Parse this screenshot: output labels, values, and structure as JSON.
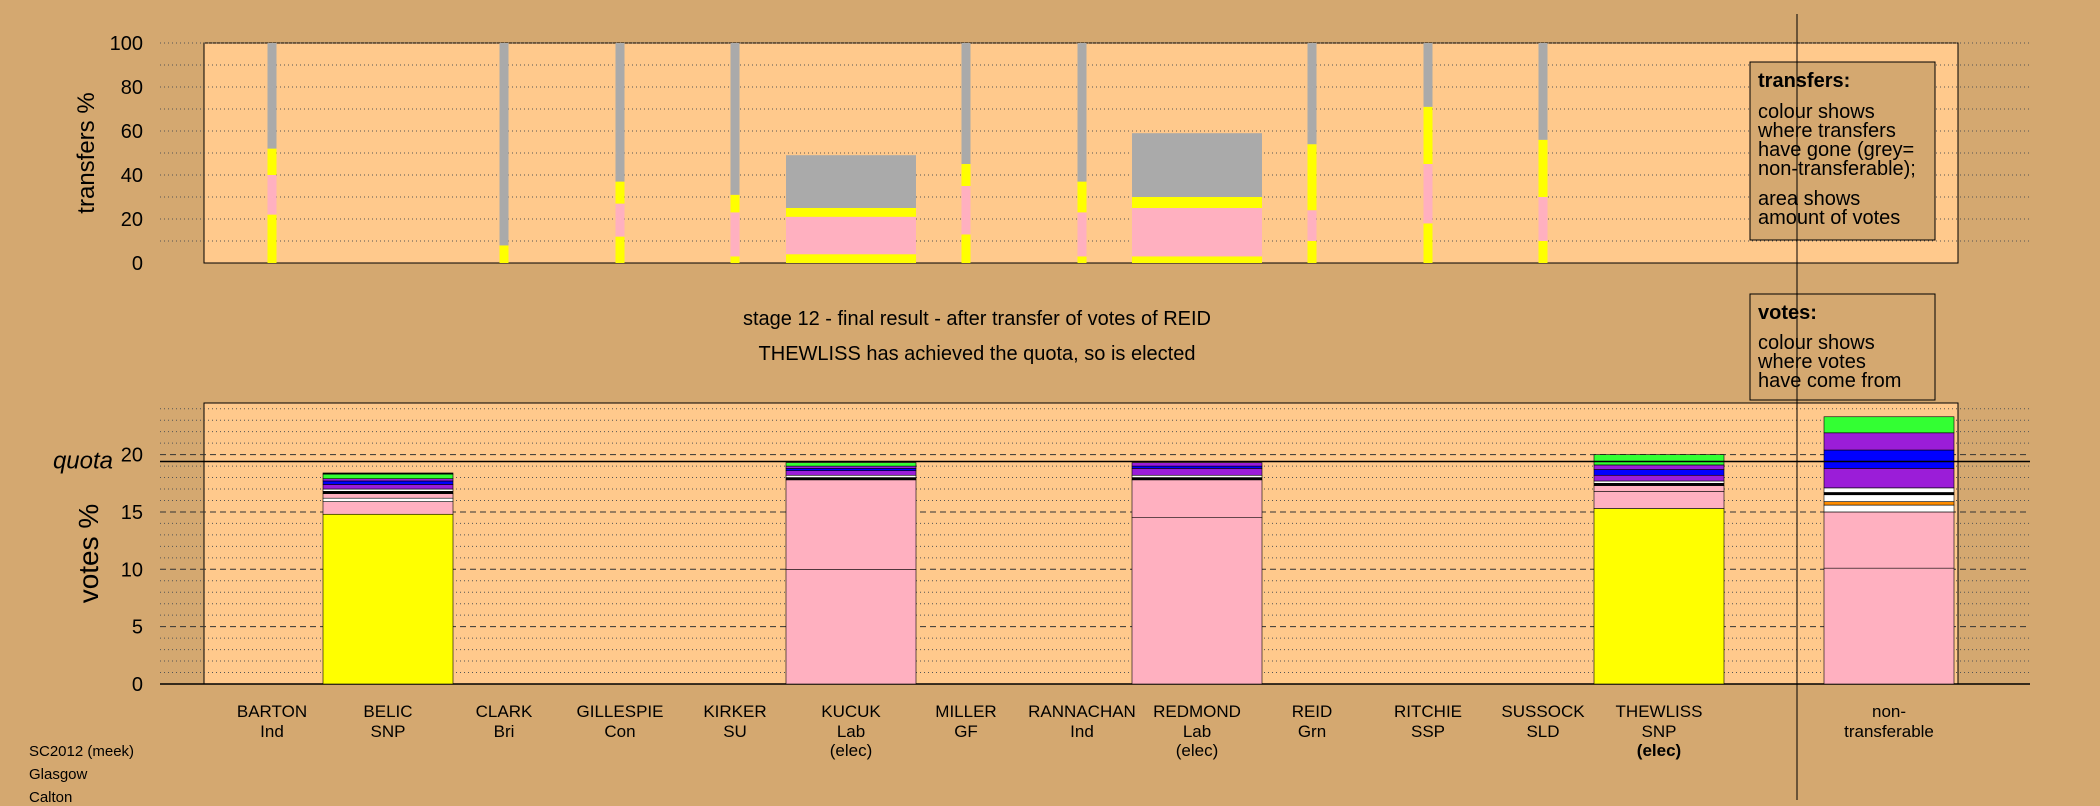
{
  "colors": {
    "background": "#d4a870",
    "panel": "#ffc98c",
    "yellow": "#ffff00",
    "pink": "#ffb0c0",
    "grey": "#aaaaaa",
    "purple": "#9b1dd8",
    "blue": "#0000ff",
    "green": "#33ff33",
    "black": "#000000",
    "white": "#ffffff",
    "orange": "#ff8c00"
  },
  "chart_data": [
    {
      "type": "bar",
      "panel": "transfers",
      "ylabel": "transfers %",
      "ylim": [
        0,
        100
      ],
      "yticks": [
        "0",
        "20",
        "40",
        "60",
        "80",
        "100"
      ],
      "categories": [
        "BARTON",
        "BELIC",
        "CLARK",
        "GILLESPIE",
        "KIRKER",
        "KUCUK",
        "MILLER",
        "RANNACHAN",
        "REDMOND",
        "REID",
        "RITCHIE",
        "SUSSOCK",
        "THEWLISS",
        "non-transferable"
      ],
      "bars": [
        {
          "category": "BARTON",
          "width": "narrow",
          "segments": [
            [
              "yellow",
              22
            ],
            [
              "pink",
              18
            ],
            [
              "yellow",
              12
            ],
            [
              "grey",
              48
            ]
          ]
        },
        {
          "category": "CLARK",
          "width": "narrow",
          "segments": [
            [
              "yellow",
              8
            ],
            [
              "grey",
              92
            ]
          ]
        },
        {
          "category": "GILLESPIE",
          "width": "narrow",
          "segments": [
            [
              "yellow",
              12
            ],
            [
              "pink",
              15
            ],
            [
              "yellow",
              10
            ],
            [
              "grey",
              63
            ]
          ]
        },
        {
          "category": "KIRKER",
          "width": "narrow",
          "segments": [
            [
              "yellow",
              3
            ],
            [
              "pink",
              20
            ],
            [
              "yellow",
              8
            ],
            [
              "grey",
              69
            ]
          ]
        },
        {
          "category": "KUCUK",
          "width": "wide",
          "segments": [
            [
              "yellow",
              4
            ],
            [
              "pink",
              17
            ],
            [
              "yellow",
              4
            ],
            [
              "grey",
              24
            ]
          ]
        },
        {
          "category": "MILLER",
          "width": "narrow",
          "segments": [
            [
              "yellow",
              13
            ],
            [
              "pink",
              22
            ],
            [
              "yellow",
              10
            ],
            [
              "grey",
              55
            ]
          ]
        },
        {
          "category": "RANNACHAN",
          "width": "narrow",
          "segments": [
            [
              "yellow",
              3
            ],
            [
              "pink",
              20
            ],
            [
              "yellow",
              14
            ],
            [
              "grey",
              63
            ]
          ]
        },
        {
          "category": "REDMOND",
          "width": "wide",
          "segments": [
            [
              "yellow",
              3
            ],
            [
              "pink",
              22
            ],
            [
              "yellow",
              5
            ],
            [
              "grey",
              29
            ]
          ]
        },
        {
          "category": "REID",
          "width": "narrow",
          "segments": [
            [
              "yellow",
              10
            ],
            [
              "pink",
              14
            ],
            [
              "yellow",
              30
            ],
            [
              "grey",
              46
            ]
          ]
        },
        {
          "category": "RITCHIE",
          "width": "narrow",
          "segments": [
            [
              "yellow",
              18
            ],
            [
              "pink",
              27
            ],
            [
              "yellow",
              26
            ],
            [
              "grey",
              29
            ]
          ]
        },
        {
          "category": "SUSSOCK",
          "width": "narrow",
          "segments": [
            [
              "yellow",
              10
            ],
            [
              "pink",
              20
            ],
            [
              "yellow",
              26
            ],
            [
              "grey",
              44
            ]
          ]
        }
      ],
      "legend": {
        "title": "transfers:",
        "lines1": [
          "colour shows",
          "where transfers",
          "have gone (grey=",
          "non-transferable);"
        ],
        "lines2": [
          "area shows",
          "amount of votes"
        ]
      }
    },
    {
      "type": "bar",
      "panel": "votes",
      "ylabel": "votes %",
      "ylim": [
        0,
        24.5
      ],
      "yticks": [
        "0",
        "5",
        "10",
        "15",
        "20"
      ],
      "quota": 19.4,
      "quota_label": "quota",
      "categories": [
        "BARTON",
        "BELIC",
        "CLARK",
        "GILLESPIE",
        "KIRKER",
        "KUCUK",
        "MILLER",
        "RANNACHAN",
        "REDMOND",
        "REID",
        "RITCHIE",
        "SUSSOCK",
        "THEWLISS",
        "non-transferable"
      ],
      "bars": [
        {
          "category": "BELIC",
          "segments": [
            [
              "yellow",
              14.8
            ],
            [
              "pink",
              1.1
            ],
            [
              "white",
              0.3
            ],
            [
              "pink",
              0.4
            ],
            [
              "black",
              0.2
            ],
            [
              "white",
              0.2
            ],
            [
              "purple",
              0.4
            ],
            [
              "blue",
              0.3
            ],
            [
              "purple",
              0.2
            ],
            [
              "green",
              0.4
            ],
            [
              "black",
              0.1
            ]
          ]
        },
        {
          "category": "KUCUK",
          "segments": [
            [
              "pink",
              10.0
            ],
            [
              "pink",
              7.8
            ],
            [
              "black",
              0.2
            ],
            [
              "white",
              0.2
            ],
            [
              "purple",
              0.4
            ],
            [
              "blue",
              0.2
            ],
            [
              "purple",
              0.2
            ],
            [
              "green",
              0.3
            ]
          ]
        },
        {
          "category": "REDMOND",
          "segments": [
            [
              "pink",
              14.5
            ],
            [
              "pink",
              3.3
            ],
            [
              "black",
              0.2
            ],
            [
              "white",
              0.2
            ],
            [
              "purple",
              0.6
            ],
            [
              "blue",
              0.2
            ],
            [
              "purple",
              0.3
            ]
          ]
        },
        {
          "category": "THEWLISS",
          "segments": [
            [
              "yellow",
              15.3
            ],
            [
              "pink",
              1.5
            ],
            [
              "pink",
              0.5
            ],
            [
              "black",
              0.2
            ],
            [
              "white",
              0.2
            ],
            [
              "purple",
              0.5
            ],
            [
              "blue",
              0.5
            ],
            [
              "purple",
              0.4
            ],
            [
              "green",
              0.9
            ]
          ]
        },
        {
          "category": "non-transferable",
          "segments": [
            [
              "pink",
              10.1
            ],
            [
              "pink",
              4.9
            ],
            [
              "white",
              0.6
            ],
            [
              "orange",
              0.3
            ],
            [
              "white",
              0.6
            ],
            [
              "black",
              0.2
            ],
            [
              "white",
              0.4
            ],
            [
              "purple",
              1.7
            ],
            [
              "blue",
              1.6
            ],
            [
              "purple",
              1.5
            ],
            [
              "green",
              1.4
            ]
          ]
        }
      ],
      "legend": {
        "title": "votes:",
        "lines": [
          "colour shows",
          "where votes",
          "have come from"
        ]
      },
      "x_labels": [
        {
          "name": "BARTON",
          "party": "Ind"
        },
        {
          "name": "BELIC",
          "party": "SNP"
        },
        {
          "name": "CLARK",
          "party": "Bri"
        },
        {
          "name": "GILLESPIE",
          "party": "Con"
        },
        {
          "name": "KIRKER",
          "party": "SU"
        },
        {
          "name": "KUCUK",
          "party": "Lab",
          "status": "(elec)"
        },
        {
          "name": "MILLER",
          "party": "GF"
        },
        {
          "name": "RANNACHAN",
          "party": "Ind"
        },
        {
          "name": "REDMOND",
          "party": "Lab",
          "status": "(elec)"
        },
        {
          "name": "REID",
          "party": "Grn"
        },
        {
          "name": "RITCHIE",
          "party": "SSP"
        },
        {
          "name": "SUSSOCK",
          "party": "SLD"
        },
        {
          "name": "THEWLISS",
          "party": "SNP",
          "status": "(elec)",
          "status_bold": true
        },
        {
          "name": "non-",
          "party": "transferable"
        }
      ]
    }
  ],
  "stage_title": "stage 12 - final result - after transfer of votes of REID",
  "stage_subtitle": "THEWLISS has achieved the quota, so is elected",
  "footer": {
    "line1": "SC2012 (meek)",
    "line2": "Glasgow",
    "line3": "Calton"
  }
}
